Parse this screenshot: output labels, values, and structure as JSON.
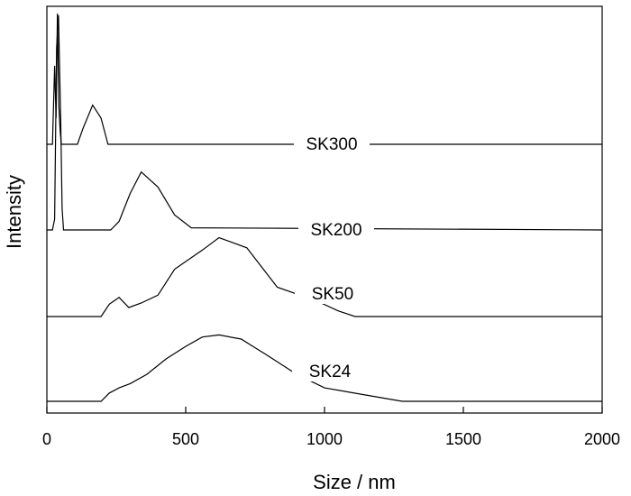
{
  "chart_data": {
    "type": "line",
    "xlabel": "Size / nm",
    "ylabel": "Intensity",
    "xlim": [
      0,
      2000
    ],
    "x_ticks": [
      0,
      500,
      1000,
      1500,
      2000
    ],
    "y_ticks_labeled": false,
    "grid": false,
    "legend": "inline labels",
    "series": [
      {
        "name": "SK300",
        "points": [
          [
            0,
            0
          ],
          [
            20,
            0
          ],
          [
            28,
            0.6
          ],
          [
            33,
            0.2
          ],
          [
            38,
            1.0
          ],
          [
            43,
            0.3
          ],
          [
            48,
            0.1
          ],
          [
            52,
            0
          ],
          [
            110,
            0
          ],
          [
            130,
            0.12
          ],
          [
            165,
            0.3
          ],
          [
            195,
            0.2
          ],
          [
            220,
            0
          ],
          [
            2000,
            0
          ]
        ]
      },
      {
        "name": "SK200",
        "points": [
          [
            0,
            0
          ],
          [
            20,
            0
          ],
          [
            28,
            0.05
          ],
          [
            35,
            0.85
          ],
          [
            42,
            1.0
          ],
          [
            50,
            0.5
          ],
          [
            55,
            0.1
          ],
          [
            60,
            0
          ],
          [
            230,
            0
          ],
          [
            260,
            0.04
          ],
          [
            300,
            0.17
          ],
          [
            340,
            0.27
          ],
          [
            400,
            0.2
          ],
          [
            460,
            0.07
          ],
          [
            520,
            0.01
          ],
          [
            2000,
            0
          ]
        ]
      },
      {
        "name": "SK50",
        "points": [
          [
            0,
            0
          ],
          [
            195,
            0
          ],
          [
            225,
            0.11
          ],
          [
            260,
            0.17
          ],
          [
            295,
            0.08
          ],
          [
            340,
            0.12
          ],
          [
            400,
            0.19
          ],
          [
            460,
            0.42
          ],
          [
            560,
            0.59
          ],
          [
            620,
            0.7
          ],
          [
            720,
            0.61
          ],
          [
            830,
            0.26
          ],
          [
            970,
            0.14
          ],
          [
            1050,
            0.05
          ],
          [
            1110,
            0
          ],
          [
            2000,
            0
          ]
        ]
      },
      {
        "name": "SK24",
        "points": [
          [
            0,
            0
          ],
          [
            195,
            0
          ],
          [
            225,
            0.08
          ],
          [
            260,
            0.13
          ],
          [
            300,
            0.17
          ],
          [
            360,
            0.26
          ],
          [
            430,
            0.41
          ],
          [
            500,
            0.53
          ],
          [
            560,
            0.62
          ],
          [
            620,
            0.64
          ],
          [
            700,
            0.6
          ],
          [
            790,
            0.45
          ],
          [
            900,
            0.26
          ],
          [
            1000,
            0.13
          ],
          [
            1150,
            0.06
          ],
          [
            1280,
            0
          ],
          [
            2000,
            0
          ]
        ]
      }
    ]
  }
}
